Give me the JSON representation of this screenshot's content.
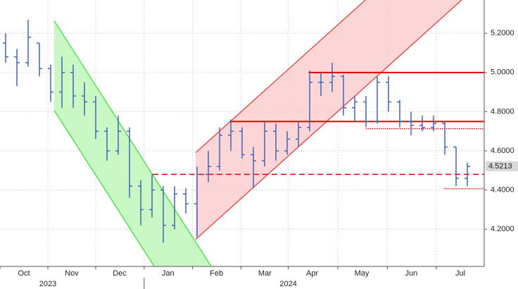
{
  "chart_data": {
    "type": "ohlc",
    "color": "#3f66b8",
    "xlim": [
      0,
      43
    ],
    "ylim": [
      4.01,
      5.37
    ],
    "grid": true,
    "xticks": [
      {
        "value": 0,
        "label": "Oct"
      },
      {
        "value": 4.25,
        "label": "Nov"
      },
      {
        "value": 8.5,
        "label": "Dec"
      },
      {
        "value": 12.8,
        "label": "Jan"
      },
      {
        "value": 17.1,
        "label": "Feb"
      },
      {
        "value": 21.4,
        "label": "Mar"
      },
      {
        "value": 25.6,
        "label": "Apr"
      },
      {
        "value": 30,
        "label": "May"
      },
      {
        "value": 34.4,
        "label": "Jun"
      },
      {
        "value": 38.75,
        "label": "Jul"
      }
    ],
    "year_labels": [
      {
        "value": 4.25,
        "label": "2023"
      },
      {
        "value": 25.6,
        "label": "2024"
      }
    ],
    "yticks": [
      {
        "value": 4.2,
        "label": "4.2000"
      },
      {
        "value": 4.4,
        "label": "4.4000"
      },
      {
        "value": 4.6,
        "label": "4.6000"
      },
      {
        "value": 4.8,
        "label": "4.8000"
      },
      {
        "value": 5.0,
        "label": "5.0000"
      },
      {
        "value": 5.2,
        "label": "5.2000"
      }
    ],
    "x": [
      0.5,
      1.5,
      2.5,
      3.5,
      4.5,
      5.5,
      6.5,
      7.5,
      8.5,
      9.5,
      10.5,
      11.5,
      12.5,
      13.5,
      14.5,
      15.5,
      16.5,
      17.5,
      18.5,
      19.5,
      20.5,
      21.5,
      22.5,
      23.5,
      24.5,
      25.5,
      26.5,
      27.5,
      28.5,
      29.5,
      30.5,
      31.5,
      32.5,
      33.5,
      34.5,
      35.5,
      36.5,
      37.5,
      38.5,
      39.5,
      40.5,
      41.5
    ],
    "open": [
      5.15,
      5.08,
      5.05,
      5.15,
      5.02,
      4.9,
      5.0,
      4.88,
      4.85,
      4.7,
      4.6,
      4.7,
      4.42,
      4.3,
      4.4,
      4.22,
      4.38,
      4.33,
      4.48,
      4.52,
      4.68,
      4.7,
      4.58,
      4.55,
      4.7,
      4.6,
      4.66,
      4.72,
      4.95,
      4.95,
      4.98,
      4.82,
      4.85,
      4.75,
      4.95,
      4.85,
      4.75,
      4.73,
      4.72,
      4.74,
      4.62,
      4.46
    ],
    "high": [
      5.2,
      5.12,
      5.27,
      5.15,
      5.04,
      5.08,
      5.04,
      4.95,
      4.88,
      4.72,
      4.78,
      4.72,
      4.45,
      4.48,
      4.42,
      4.42,
      4.41,
      4.52,
      4.6,
      4.72,
      4.76,
      4.72,
      4.62,
      4.75,
      4.74,
      4.7,
      4.75,
      5.01,
      5.0,
      5.05,
      4.99,
      4.88,
      4.88,
      4.98,
      4.98,
      4.86,
      4.8,
      4.78,
      4.78,
      4.75,
      4.62,
      4.54
    ],
    "low": [
      5.05,
      4.93,
      5.03,
      4.98,
      4.85,
      4.82,
      4.82,
      4.78,
      4.66,
      4.55,
      4.58,
      4.36,
      4.22,
      4.26,
      4.13,
      4.2,
      4.28,
      4.16,
      4.44,
      4.5,
      4.6,
      4.56,
      4.41,
      4.52,
      4.55,
      4.58,
      4.62,
      4.7,
      4.88,
      4.9,
      4.78,
      4.75,
      4.72,
      4.74,
      4.8,
      4.72,
      4.68,
      4.7,
      4.7,
      4.58,
      4.42,
      4.42
    ],
    "close": [
      5.08,
      5.05,
      5.18,
      5.02,
      4.9,
      5.0,
      4.88,
      4.85,
      4.7,
      4.6,
      4.7,
      4.42,
      4.3,
      4.4,
      4.22,
      4.38,
      4.33,
      4.48,
      4.52,
      4.68,
      4.7,
      4.58,
      4.55,
      4.7,
      4.6,
      4.66,
      4.72,
      4.95,
      4.95,
      4.98,
      4.82,
      4.85,
      4.75,
      4.95,
      4.85,
      4.75,
      4.73,
      4.72,
      4.74,
      4.62,
      4.46,
      4.52
    ],
    "channels": [
      {
        "color": "#32e032",
        "fill": "#b8f5b0",
        "upper": [
          [
            4.81,
            5.265
          ],
          [
            18.75,
            4.011
          ]
        ],
        "lower": [
          [
            4.81,
            4.807
          ],
          [
            13.69,
            4.011
          ]
        ]
      },
      {
        "color": "#e83030",
        "fill": "#fbc8c8",
        "upper": [
          [
            17.375,
            4.591
          ],
          [
            32.44,
            5.37
          ]
        ],
        "lower": [
          [
            17.375,
            4.148
          ],
          [
            41,
            5.37
          ]
        ]
      }
    ],
    "levels": [
      {
        "value": 5.0,
        "from": 27.4,
        "style": "solid",
        "color": "#e00000"
      },
      {
        "value": 4.75,
        "from": 20.4,
        "style": "solid",
        "color": "#e00000"
      },
      {
        "value": 4.48,
        "from": 13.56,
        "style": "dashed",
        "color": "#e00000"
      },
      {
        "value": 4.713,
        "from": 32.5,
        "style": "dotted",
        "color": "#e00000"
      },
      {
        "value": 4.407,
        "from": 39.4,
        "style": "solid",
        "color": "#f08080"
      }
    ],
    "last_price": 4.5213
  }
}
